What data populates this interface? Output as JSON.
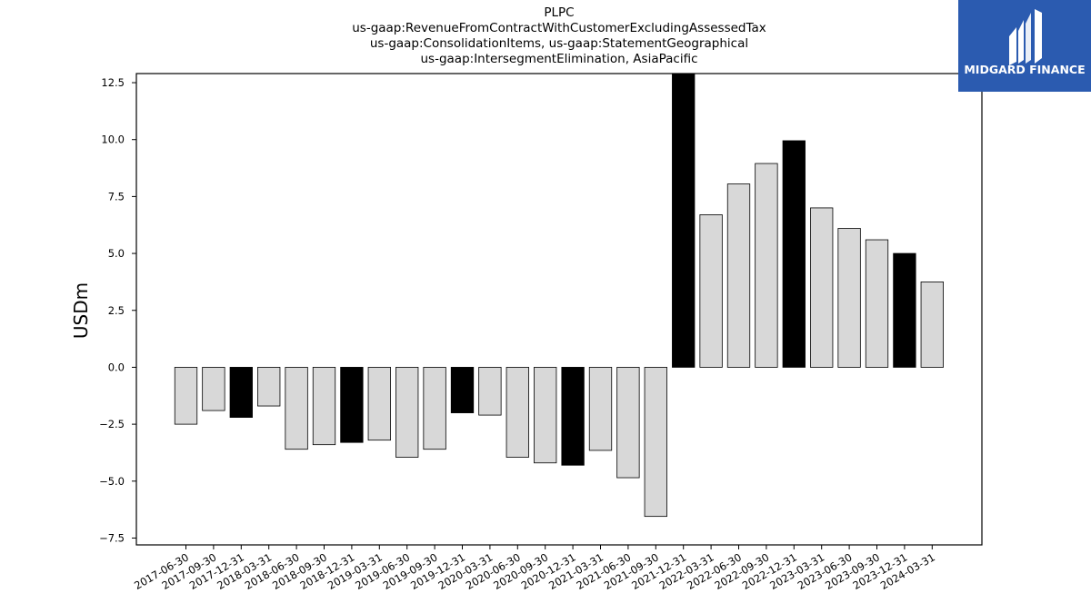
{
  "title_lines": [
    "PLPC",
    "us-gaap:RevenueFromContractWithCustomerExcludingAssessedTax",
    "us-gaap:ConsolidationItems, us-gaap:StatementGeographical",
    "us-gaap:IntersegmentElimination, AsiaPacific"
  ],
  "logo": {
    "text": "MIDGARD FINANCE",
    "background": "#2B5BB0",
    "icon": "midgard-logo-icon"
  },
  "chart_data": {
    "type": "bar",
    "ylabel": "USDm",
    "xlabel": "",
    "ylim": [
      -7.8,
      12.9
    ],
    "yticks": [
      -7.5,
      -5.0,
      -2.5,
      0.0,
      2.5,
      5.0,
      7.5,
      10.0,
      12.5
    ],
    "categories": [
      "2017-06-30",
      "2017-09-30",
      "2017-12-31",
      "2018-03-31",
      "2018-06-30",
      "2018-09-30",
      "2018-12-31",
      "2019-03-31",
      "2019-06-30",
      "2019-09-30",
      "2019-12-31",
      "2020-03-31",
      "2020-06-30",
      "2020-09-30",
      "2020-12-31",
      "2021-03-31",
      "2021-06-30",
      "2021-09-30",
      "2021-12-31",
      "2022-03-31",
      "2022-06-30",
      "2022-09-30",
      "2022-12-31",
      "2023-03-31",
      "2023-06-30",
      "2023-09-30",
      "2023-12-31",
      "2024-03-31"
    ],
    "values": [
      -2.5,
      -1.9,
      -2.2,
      -1.7,
      -3.6,
      -3.4,
      -3.3,
      -3.2,
      -3.95,
      -3.6,
      -2.0,
      -2.1,
      -3.95,
      -4.2,
      -4.3,
      -3.65,
      -4.85,
      -6.55,
      12.9,
      6.7,
      8.05,
      8.95,
      9.95,
      7.0,
      6.1,
      5.6,
      5.0,
      3.75
    ],
    "annual_flag": [
      false,
      false,
      true,
      false,
      false,
      false,
      true,
      false,
      false,
      false,
      true,
      false,
      false,
      false,
      true,
      false,
      false,
      false,
      true,
      false,
      false,
      false,
      true,
      false,
      false,
      false,
      true,
      false
    ],
    "colors": {
      "annual": "#000000",
      "quarter": "#d8d8d8",
      "edge": "#000000"
    },
    "grid": false,
    "legend": "none"
  }
}
